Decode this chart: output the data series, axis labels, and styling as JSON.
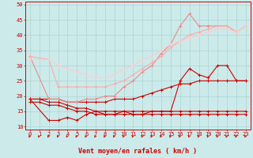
{
  "background_color": "#cceaea",
  "grid_color": "#aad4d4",
  "xlabel": "Vent moyen/en rafales ( km/h )",
  "xlabel_color": "#cc0000",
  "xlabel_fontsize": 6,
  "tick_color": "#cc0000",
  "tick_fontsize": 5.0,
  "ylim": [
    9,
    51
  ],
  "xlim": [
    -0.5,
    23.5
  ],
  "yticks": [
    10,
    15,
    20,
    25,
    30,
    35,
    40,
    45,
    50
  ],
  "xticks": [
    0,
    1,
    2,
    3,
    4,
    5,
    6,
    7,
    8,
    9,
    10,
    11,
    12,
    13,
    14,
    15,
    16,
    17,
    18,
    19,
    20,
    21,
    22,
    23
  ],
  "lines": [
    {
      "x": [
        0,
        1,
        2,
        3,
        4,
        5,
        6,
        7,
        8,
        9,
        10,
        11,
        12,
        13,
        14,
        15,
        16,
        17,
        18,
        19,
        20,
        21,
        22,
        23
      ],
      "y": [
        18,
        18,
        17,
        17,
        16,
        15,
        15,
        14,
        14,
        14,
        14,
        14,
        14,
        14,
        14,
        14,
        14,
        14,
        14,
        14,
        14,
        14,
        14,
        14
      ],
      "color": "#cc0000",
      "lw": 0.8,
      "marker": "+",
      "ms": 2.5
    },
    {
      "x": [
        0,
        1,
        2,
        3,
        4,
        5,
        6,
        7,
        8,
        9,
        10,
        11,
        12,
        13,
        14,
        15,
        16,
        17,
        18,
        19,
        20,
        21,
        22,
        23
      ],
      "y": [
        19,
        19,
        18,
        18,
        17,
        16,
        16,
        15,
        15,
        15,
        15,
        15,
        15,
        15,
        15,
        15,
        15,
        15,
        15,
        15,
        15,
        15,
        15,
        15
      ],
      "color": "#cc0000",
      "lw": 0.8,
      "marker": "+",
      "ms": 2.5
    },
    {
      "x": [
        0,
        1,
        2,
        3,
        4,
        5,
        6,
        7,
        8,
        9,
        10,
        11,
        12,
        13,
        14,
        15,
        16,
        17,
        18,
        19,
        20,
        21,
        22,
        23
      ],
      "y": [
        19,
        19,
        19,
        19,
        18,
        18,
        18,
        18,
        18,
        19,
        19,
        19,
        20,
        21,
        22,
        23,
        24,
        24,
        25,
        25,
        25,
        25,
        25,
        25
      ],
      "color": "#cc0000",
      "lw": 0.8,
      "marker": "+",
      "ms": 2.5
    },
    {
      "x": [
        0,
        2,
        3,
        4,
        5,
        6,
        7,
        8,
        9,
        10,
        11,
        12,
        13,
        14,
        15,
        16,
        17,
        18,
        19,
        20,
        21,
        22,
        23
      ],
      "y": [
        19,
        12,
        12,
        13,
        12,
        14,
        15,
        14,
        14,
        15,
        14,
        14,
        15,
        15,
        15,
        25,
        29,
        27,
        26,
        30,
        30,
        25,
        25
      ],
      "color": "#cc0000",
      "lw": 0.8,
      "marker": "+",
      "ms": 2.5
    },
    {
      "x": [
        0,
        2,
        3,
        4,
        5,
        6,
        7,
        8,
        9,
        10,
        11,
        12,
        13,
        14,
        15,
        16,
        17,
        18,
        19,
        20,
        21,
        22,
        23
      ],
      "y": [
        33,
        19,
        19,
        18,
        18,
        19,
        19,
        20,
        20,
        23,
        25,
        28,
        30,
        34,
        37,
        43,
        47,
        43,
        43,
        43,
        43,
        41,
        43
      ],
      "color": "#ee8888",
      "lw": 0.8,
      "marker": "+",
      "ms": 2.5
    },
    {
      "x": [
        0,
        2,
        3,
        4,
        5,
        6,
        7,
        8,
        9,
        10,
        11,
        12,
        13,
        14,
        15,
        16,
        17,
        18,
        19,
        20,
        21,
        22,
        23
      ],
      "y": [
        33,
        32,
        23,
        23,
        23,
        23,
        23,
        23,
        24,
        25,
        27,
        29,
        31,
        33,
        36,
        38,
        40,
        41,
        42,
        43,
        43,
        41,
        43
      ],
      "color": "#ffaaaa",
      "lw": 0.8,
      "marker": "+",
      "ms": 2.5
    },
    {
      "x": [
        0,
        2,
        3,
        4,
        5,
        6,
        7,
        8,
        9,
        10,
        11,
        12,
        13,
        14,
        15,
        16,
        17,
        18,
        19,
        20,
        21,
        22,
        23
      ],
      "y": [
        32,
        32,
        30,
        29,
        28,
        27,
        26,
        26,
        27,
        29,
        30,
        32,
        33,
        35,
        37,
        38,
        39,
        40,
        41,
        42,
        42,
        41,
        43
      ],
      "color": "#ffcccc",
      "lw": 0.8,
      "marker": "+",
      "ms": 2.5
    }
  ],
  "arrow_color": "#cc0000"
}
